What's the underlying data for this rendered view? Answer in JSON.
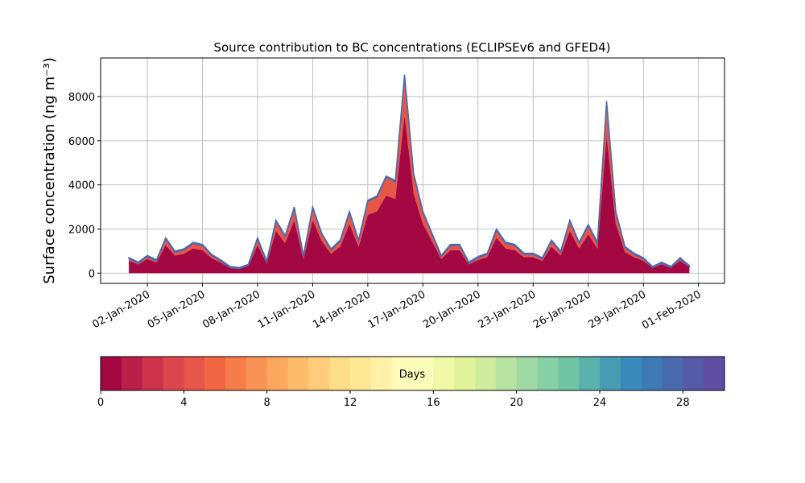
{
  "chart_data": {
    "type": "stackedarea",
    "title": "Source contribution to BC concentrations (ECLIPSEv6 and GFED4)",
    "ylabel": "Surface concentration (ng m⁻³)",
    "grid": true,
    "x": [
      "2020-01-01T00:00",
      "2020-01-01T12:00",
      "2020-01-02T00:00",
      "2020-01-02T12:00",
      "2020-01-03T00:00",
      "2020-01-03T12:00",
      "2020-01-04T00:00",
      "2020-01-04T12:00",
      "2020-01-05T00:00",
      "2020-01-05T12:00",
      "2020-01-06T00:00",
      "2020-01-06T12:00",
      "2020-01-07T00:00",
      "2020-01-07T12:00",
      "2020-01-08T00:00",
      "2020-01-08T12:00",
      "2020-01-09T00:00",
      "2020-01-09T12:00",
      "2020-01-10T00:00",
      "2020-01-10T12:00",
      "2020-01-11T00:00",
      "2020-01-11T12:00",
      "2020-01-12T00:00",
      "2020-01-12T12:00",
      "2020-01-13T00:00",
      "2020-01-13T12:00",
      "2020-01-14T00:00",
      "2020-01-14T12:00",
      "2020-01-15T00:00",
      "2020-01-15T12:00",
      "2020-01-16T00:00",
      "2020-01-16T12:00",
      "2020-01-17T00:00",
      "2020-01-17T12:00",
      "2020-01-18T00:00",
      "2020-01-18T12:00",
      "2020-01-19T00:00",
      "2020-01-19T12:00",
      "2020-01-20T00:00",
      "2020-01-20T12:00",
      "2020-01-21T00:00",
      "2020-01-21T12:00",
      "2020-01-22T00:00",
      "2020-01-22T12:00",
      "2020-01-23T00:00",
      "2020-01-23T12:00",
      "2020-01-24T00:00",
      "2020-01-24T12:00",
      "2020-01-25T00:00",
      "2020-01-25T12:00",
      "2020-01-26T00:00",
      "2020-01-26T12:00",
      "2020-01-27T00:00",
      "2020-01-27T12:00",
      "2020-01-28T00:00",
      "2020-01-28T12:00",
      "2020-01-29T00:00",
      "2020-01-29T12:00",
      "2020-01-30T00:00",
      "2020-01-30T12:00",
      "2020-01-31T00:00",
      "2020-01-31T12:00"
    ],
    "series": [
      {
        "color": "#a40843",
        "values": [
          560,
          400,
          640,
          480,
          1280,
          800,
          880,
          1120,
          1040,
          680,
          480,
          240,
          200,
          320,
          1280,
          440,
          1920,
          1360,
          2400,
          640,
          2400,
          1440,
          880,
          1200,
          2240,
          1200,
          2640,
          2800,
          3520,
          3360,
          7200,
          3600,
          2240,
          1440,
          640,
          1040,
          1040,
          400,
          600,
          720,
          1600,
          1120,
          1040,
          720,
          720,
          560,
          1200,
          800,
          1920,
          1120,
          1760,
          1120,
          6240,
          2240,
          960,
          720,
          560,
          240,
          400,
          240,
          560,
          280
        ]
      },
      {
        "color": "#e65649",
        "values": [
          90,
          50,
          110,
          70,
          270,
          150,
          170,
          230,
          210,
          120,
          70,
          10,
          0,
          30,
          270,
          60,
          430,
          290,
          550,
          110,
          550,
          310,
          170,
          250,
          510,
          250,
          610,
          650,
          830,
          790,
          1750,
          850,
          510,
          310,
          110,
          210,
          210,
          50,
          100,
          130,
          350,
          230,
          210,
          130,
          130,
          90,
          250,
          150,
          430,
          230,
          390,
          230,
          1510,
          510,
          190,
          130,
          90,
          10,
          50,
          10,
          90,
          20
        ]
      },
      {
        "color": "#4a6aae",
        "values": [
          50,
          50,
          50,
          50,
          50,
          50,
          50,
          50,
          50,
          50,
          50,
          50,
          50,
          50,
          50,
          50,
          50,
          50,
          50,
          50,
          50,
          50,
          50,
          50,
          50,
          50,
          50,
          50,
          50,
          50,
          50,
          50,
          50,
          50,
          50,
          50,
          50,
          50,
          50,
          50,
          50,
          50,
          50,
          50,
          50,
          50,
          50,
          50,
          50,
          50,
          50,
          50,
          50,
          50,
          50,
          50,
          50,
          50,
          50,
          50,
          50,
          50
        ]
      }
    ],
    "xlim": [
      "2019-12-30T11:00",
      "2020-02-02T10:00"
    ],
    "xticks": [
      {
        "value": "2020-01-02T00:00",
        "label": "02-Jan-2020"
      },
      {
        "value": "2020-01-05T00:00",
        "label": "05-Jan-2020"
      },
      {
        "value": "2020-01-08T00:00",
        "label": "08-Jan-2020"
      },
      {
        "value": "2020-01-11T00:00",
        "label": "11-Jan-2020"
      },
      {
        "value": "2020-01-14T00:00",
        "label": "14-Jan-2020"
      },
      {
        "value": "2020-01-17T00:00",
        "label": "17-Jan-2020"
      },
      {
        "value": "2020-01-20T00:00",
        "label": "20-Jan-2020"
      },
      {
        "value": "2020-01-23T00:00",
        "label": "23-Jan-2020"
      },
      {
        "value": "2020-01-26T00:00",
        "label": "26-Jan-2020"
      },
      {
        "value": "2020-01-29T00:00",
        "label": "29-Jan-2020"
      },
      {
        "value": "2020-02-01T00:00",
        "label": "01-Feb-2020"
      }
    ],
    "ylim": [
      -465,
      9755
    ],
    "yticks": [
      0,
      2000,
      4000,
      6000,
      8000
    ],
    "colorbar": {
      "label": "Days",
      "lim": [
        0,
        30
      ],
      "ticks": [
        0,
        4,
        8,
        12,
        16,
        20,
        24,
        28
      ],
      "colors": [
        "#a40843",
        "#b91f48",
        "#cc334b",
        "#da464d",
        "#e65649",
        "#f06744",
        "#f67c4a",
        "#f99355",
        "#fca85e",
        "#fdbb6c",
        "#fecc7a",
        "#fedc88",
        "#fee896",
        "#fff2a8",
        "#fffbb8",
        "#fbfdba",
        "#f1f9a9",
        "#e3f399",
        "#cfec9c",
        "#b8e2a1",
        "#a0d8a4",
        "#87cfa5",
        "#6fc4a5",
        "#5bb1ab",
        "#489db3",
        "#3a89bb",
        "#3d7ab6",
        "#4a6aae",
        "#565ba7",
        "#5e4fa2"
      ]
    }
  }
}
